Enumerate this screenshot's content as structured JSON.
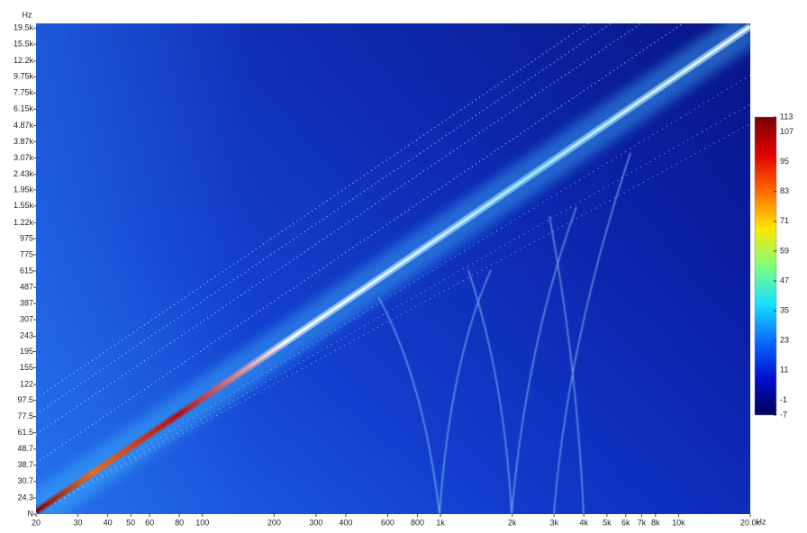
{
  "chart_data": {
    "type": "heatmap",
    "x_label": "Hz",
    "y_label": "Hz",
    "log_x": true,
    "log_y": true,
    "xlim": [
      20,
      20000
    ],
    "xticks": [
      20,
      30,
      40,
      50,
      60,
      80,
      100,
      200,
      300,
      400,
      600,
      800,
      {
        "value": 1000,
        "label": "1k"
      },
      {
        "value": 2000,
        "label": "2k"
      },
      {
        "value": 3000,
        "label": "3k"
      },
      {
        "value": 4000,
        "label": "4k"
      },
      {
        "value": 5000,
        "label": "5k"
      },
      {
        "value": 6000,
        "label": "6k"
      },
      {
        "value": 7000,
        "label": "7k"
      },
      {
        "value": 8000,
        "label": "8k"
      },
      {
        "value": 10000,
        "label": "10k"
      },
      {
        "value": 20000,
        "label": "20.0k"
      }
    ],
    "ylim": [
      19.3,
      20850
    ],
    "yticks": [
      {
        "value": 19500,
        "label": "19.5k"
      },
      {
        "value": 15500,
        "label": "15.5k"
      },
      {
        "value": 12200,
        "label": "12.2k"
      },
      {
        "value": 9750,
        "label": "9.75k"
      },
      {
        "value": 7750,
        "label": "7.75k"
      },
      {
        "value": 6150,
        "label": "6.15k"
      },
      {
        "value": 4870,
        "label": "4.87k"
      },
      {
        "value": 3870,
        "label": "3.87k"
      },
      {
        "value": 3070,
        "label": "3.07k"
      },
      {
        "value": 2430,
        "label": "2.43k"
      },
      {
        "value": 1950,
        "label": "1.95k"
      },
      {
        "value": 1550,
        "label": "1.55k"
      },
      {
        "value": 1220,
        "label": "1.22k"
      },
      975,
      775,
      615,
      487,
      387,
      307,
      243,
      195,
      155,
      122,
      97.5,
      77.5,
      61.5,
      48.7,
      38.7,
      30.7,
      24.3,
      {
        "value": 19.3,
        "label": "N"
      }
    ],
    "colorbar": {
      "lim": [
        -7,
        113
      ],
      "ticks": [
        113,
        107,
        95,
        83,
        71,
        59,
        47,
        35,
        23,
        11,
        -1,
        -7
      ],
      "colors": [
        "#00005a",
        "#0010d0",
        "#0a6cff",
        "#19e0ff",
        "#7dff7a",
        "#ffe600",
        "#ff6a00",
        "#e00000",
        "#7a0000"
      ]
    }
  }
}
